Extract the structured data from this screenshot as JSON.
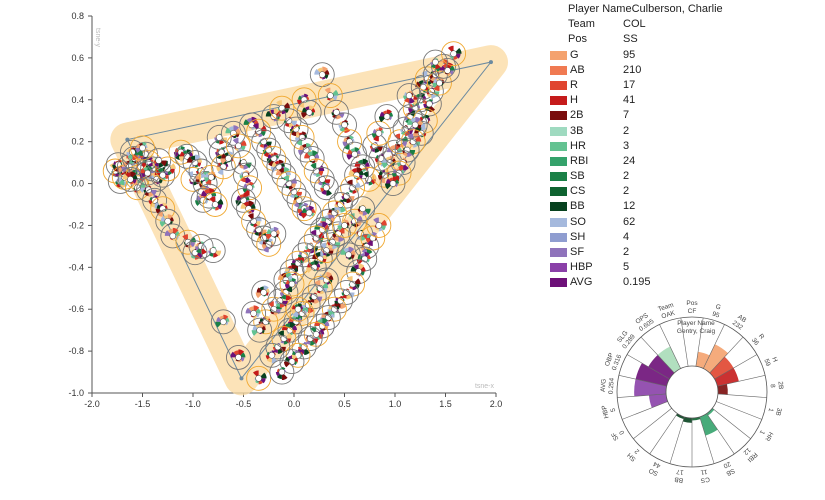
{
  "chart_data": {
    "type": "scatter",
    "title": "",
    "xlabel": "tsne-x",
    "ylabel": "tsne-y",
    "xlim": [
      -2.0,
      2.0
    ],
    "ylim": [
      -1.0,
      0.8
    ],
    "x_ticks": [
      "-2.0",
      "-1.5",
      "-1.0",
      "-0.5",
      "0.0",
      "0.5",
      "1.0",
      "1.5",
      "2.0"
    ],
    "y_ticks": [
      "0.8",
      "0.6",
      "0.4",
      "0.2",
      "0.0",
      "-0.2",
      "-0.4",
      "-0.6",
      "-0.8",
      "-1.0"
    ],
    "path": [
      [
        -1.65,
        0.21
      ],
      [
        1.95,
        0.58
      ],
      [
        -0.52,
        -0.93
      ],
      [
        -1.65,
        0.21
      ]
    ],
    "points": [
      [
        -1.77,
        0.06
      ],
      [
        -1.72,
        0.01
      ],
      [
        -1.74,
        0.09
      ],
      [
        -1.68,
        0.03
      ],
      [
        -1.63,
        0.08
      ],
      [
        -1.58,
        0.12
      ],
      [
        -1.55,
        0.03
      ],
      [
        -1.52,
        0.08
      ],
      [
        -1.47,
        0.14
      ],
      [
        -1.44,
        0.1
      ],
      [
        -1.4,
        0.07
      ],
      [
        -1.36,
        0.02
      ],
      [
        -1.55,
        -0.02
      ],
      [
        -1.44,
        -0.03
      ],
      [
        -1.6,
        0.15
      ],
      [
        -1.5,
        0.17
      ],
      [
        -1.45,
        0.05
      ],
      [
        -1.3,
        0.04
      ],
      [
        -1.25,
        0.07
      ],
      [
        -1.34,
        0.11
      ],
      [
        -1.38,
        -0.08
      ],
      [
        -1.3,
        -0.12
      ],
      [
        -1.25,
        -0.18
      ],
      [
        -1.2,
        -0.25
      ],
      [
        -1.05,
        -0.28
      ],
      [
        -0.98,
        -0.33
      ],
      [
        -0.92,
        -0.3
      ],
      [
        -1.12,
        0.15
      ],
      [
        -1.06,
        0.13
      ],
      [
        -0.98,
        0.1
      ],
      [
        -1.0,
        0.02
      ],
      [
        -0.92,
        0.06
      ],
      [
        -0.88,
        0.0
      ],
      [
        -0.82,
        0.03
      ],
      [
        -0.9,
        -0.08
      ],
      [
        -0.84,
        -0.06
      ],
      [
        -0.78,
        -0.1
      ],
      [
        -0.74,
        0.22
      ],
      [
        -0.72,
        0.15
      ],
      [
        -0.7,
        0.08
      ],
      [
        -0.65,
        0.12
      ],
      [
        -0.6,
        0.24
      ],
      [
        -0.55,
        0.18
      ],
      [
        -0.5,
        0.1
      ],
      [
        -0.48,
        0.04
      ],
      [
        -0.44,
        -0.02
      ],
      [
        -0.5,
        -0.08
      ],
      [
        -0.45,
        -0.12
      ],
      [
        -0.4,
        -0.18
      ],
      [
        -0.35,
        -0.22
      ],
      [
        -0.3,
        -0.26
      ],
      [
        -0.25,
        -0.29
      ],
      [
        -0.2,
        -0.24
      ],
      [
        -0.42,
        0.28
      ],
      [
        -0.35,
        0.25
      ],
      [
        -0.3,
        0.2
      ],
      [
        -0.25,
        0.16
      ],
      [
        -0.2,
        0.12
      ],
      [
        -0.15,
        0.08
      ],
      [
        -0.1,
        0.04
      ],
      [
        -0.05,
        0.0
      ],
      [
        0.0,
        -0.04
      ],
      [
        0.05,
        -0.08
      ],
      [
        0.1,
        -0.12
      ],
      [
        0.15,
        -0.14
      ],
      [
        -0.2,
        0.32
      ],
      [
        -0.12,
        0.36
      ],
      [
        -0.05,
        0.3
      ],
      [
        0.02,
        0.26
      ],
      [
        0.08,
        0.22
      ],
      [
        0.12,
        0.16
      ],
      [
        0.18,
        0.12
      ],
      [
        0.22,
        0.06
      ],
      [
        0.28,
        0.02
      ],
      [
        0.32,
        -0.02
      ],
      [
        0.1,
        0.4
      ],
      [
        0.15,
        0.34
      ],
      [
        0.28,
        0.52
      ],
      [
        0.36,
        0.42
      ],
      [
        0.42,
        0.34
      ],
      [
        0.5,
        0.28
      ],
      [
        0.55,
        0.2
      ],
      [
        0.6,
        0.14
      ],
      [
        0.68,
        0.08
      ],
      [
        0.74,
        0.02
      ],
      [
        0.8,
        0.18
      ],
      [
        0.86,
        0.12
      ],
      [
        0.9,
        0.04
      ],
      [
        0.95,
        0.1
      ],
      [
        1.0,
        0.15
      ],
      [
        1.05,
        0.2
      ],
      [
        1.1,
        0.26
      ],
      [
        1.15,
        0.32
      ],
      [
        1.2,
        0.36
      ],
      [
        1.25,
        0.4
      ],
      [
        1.28,
        0.46
      ],
      [
        1.32,
        0.5
      ],
      [
        1.36,
        0.44
      ],
      [
        1.4,
        0.52
      ],
      [
        1.44,
        0.48
      ],
      [
        1.48,
        0.56
      ],
      [
        1.52,
        0.54
      ],
      [
        1.58,
        0.62
      ],
      [
        1.4,
        0.58
      ],
      [
        1.34,
        0.38
      ],
      [
        1.3,
        0.3
      ],
      [
        1.26,
        0.24
      ],
      [
        1.2,
        0.28
      ],
      [
        1.18,
        0.2
      ],
      [
        1.12,
        0.16
      ],
      [
        1.08,
        0.1
      ],
      [
        1.04,
        0.05
      ],
      [
        0.98,
        0.0
      ],
      [
        0.62,
        0.04
      ],
      [
        0.58,
        -0.02
      ],
      [
        0.52,
        -0.06
      ],
      [
        0.46,
        -0.1
      ],
      [
        0.4,
        -0.14
      ],
      [
        0.34,
        -0.18
      ],
      [
        0.28,
        -0.22
      ],
      [
        0.22,
        -0.26
      ],
      [
        0.16,
        -0.3
      ],
      [
        0.1,
        -0.34
      ],
      [
        0.04,
        -0.38
      ],
      [
        -0.02,
        -0.42
      ],
      [
        -0.08,
        -0.46
      ],
      [
        0.6,
        -0.18
      ],
      [
        0.66,
        -0.24
      ],
      [
        0.72,
        -0.3
      ],
      [
        0.78,
        -0.26
      ],
      [
        0.7,
        -0.36
      ],
      [
        0.64,
        -0.42
      ],
      [
        0.58,
        -0.48
      ],
      [
        0.52,
        -0.52
      ],
      [
        0.46,
        -0.56
      ],
      [
        0.4,
        -0.6
      ],
      [
        0.34,
        -0.64
      ],
      [
        0.28,
        -0.68
      ],
      [
        0.22,
        -0.72
      ],
      [
        0.16,
        -0.74
      ],
      [
        0.1,
        -0.78
      ],
      [
        0.04,
        -0.82
      ],
      [
        -0.02,
        -0.85
      ],
      [
        0.32,
        -0.46
      ],
      [
        0.26,
        -0.5
      ],
      [
        0.2,
        -0.54
      ],
      [
        0.14,
        -0.58
      ],
      [
        0.08,
        -0.62
      ],
      [
        0.02,
        -0.66
      ],
      [
        -0.04,
        -0.7
      ],
      [
        -0.1,
        -0.74
      ],
      [
        -0.16,
        -0.78
      ],
      [
        -0.22,
        -0.82
      ],
      [
        -0.28,
        -0.66
      ],
      [
        -0.34,
        -0.7
      ],
      [
        -0.4,
        -0.62
      ],
      [
        -0.2,
        -0.6
      ],
      [
        -0.14,
        -0.56
      ],
      [
        -0.08,
        -0.52
      ],
      [
        -0.02,
        -0.48
      ],
      [
        0.2,
        -0.4
      ],
      [
        0.26,
        -0.36
      ],
      [
        0.32,
        -0.32
      ],
      [
        0.38,
        -0.28
      ],
      [
        0.44,
        -0.24
      ],
      [
        0.5,
        -0.2
      ],
      [
        -0.7,
        -0.66
      ],
      [
        -0.55,
        -0.83
      ],
      [
        -0.35,
        -0.93
      ],
      [
        -0.8,
        -0.32
      ],
      [
        -0.12,
        -0.9
      ],
      [
        0.04,
        -0.6
      ],
      [
        -0.3,
        -0.52
      ],
      [
        0.54,
        -0.34
      ],
      [
        0.84,
        -0.2
      ],
      [
        0.68,
        -0.12
      ],
      [
        1.14,
        0.42
      ],
      [
        0.84,
        0.24
      ],
      [
        0.92,
        0.32
      ],
      [
        -1.62,
        0.02
      ]
    ]
  },
  "stats": {
    "rows": [
      {
        "label": "G",
        "value": "95",
        "color": "#f4a26e"
      },
      {
        "label": "AB",
        "value": "210",
        "color": "#f07a52"
      },
      {
        "label": "R",
        "value": "17",
        "color": "#e0452f"
      },
      {
        "label": "H",
        "value": "41",
        "color": "#c51b1b"
      },
      {
        "label": "2B",
        "value": "7",
        "color": "#7a0c0c"
      },
      {
        "label": "3B",
        "value": "2",
        "color": "#9fdac0"
      },
      {
        "label": "HR",
        "value": "3",
        "color": "#63c291"
      },
      {
        "label": "RBI",
        "value": "24",
        "color": "#34a26b"
      },
      {
        "label": "SB",
        "value": "2",
        "color": "#1a8046"
      },
      {
        "label": "CS",
        "value": "2",
        "color": "#0e6330"
      },
      {
        "label": "BB",
        "value": "12",
        "color": "#07421f"
      },
      {
        "label": "SO",
        "value": "62",
        "color": "#a5b9dd"
      },
      {
        "label": "SH",
        "value": "4",
        "color": "#8f9dd0"
      },
      {
        "label": "SF",
        "value": "2",
        "color": "#8f73bb"
      },
      {
        "label": "HBP",
        "value": "5",
        "color": "#8a40a8"
      },
      {
        "label": "AVG",
        "value": "0.195",
        "color": "#6d1078"
      }
    ],
    "player_label": "Player Name",
    "player_value": "Culberson, Charlie",
    "team_label": "Team",
    "team_value": "COL",
    "pos_label": "Pos",
    "pos_value": "SS"
  },
  "radial": {
    "center_top_text": "Player Name",
    "center_sub_text": "Gentry, Craig",
    "segments": [
      {
        "label": "G",
        "value": "95",
        "fraction": 0.3,
        "color": "#f4a26e"
      },
      {
        "label": "AB",
        "value": "232",
        "fraction": 0.55,
        "color": "#f4a26e"
      },
      {
        "label": "R",
        "value": "36",
        "fraction": 0.45,
        "color": "#e0452f"
      },
      {
        "label": "H",
        "value": "59",
        "fraction": 0.45,
        "color": "#c51b1b"
      },
      {
        "label": "2B",
        "value": "8",
        "fraction": 0.2,
        "color": "#7a0c0c"
      },
      {
        "label": "3B",
        "value": "1",
        "fraction": 0.0,
        "color": "#9fdac0"
      },
      {
        "label": "HR",
        "value": "1",
        "fraction": 0.0,
        "color": "#63c291"
      },
      {
        "label": "RBI",
        "value": "12",
        "fraction": 0.05,
        "color": "#34a26b"
      },
      {
        "label": "SB",
        "value": "20",
        "fraction": 0.4,
        "color": "#34a26b"
      },
      {
        "label": "CS",
        "value": "11",
        "fraction": 0.05,
        "color": "#0e6330"
      },
      {
        "label": "BB",
        "value": "17",
        "fraction": 0.1,
        "color": "#07421f"
      },
      {
        "label": "SO",
        "value": "44",
        "fraction": 0.05,
        "color": "#07421f"
      },
      {
        "label": "SH",
        "value": "2",
        "fraction": 0.0,
        "color": "#8f9dd0"
      },
      {
        "label": "SF",
        "value": "0",
        "fraction": 0.0,
        "color": "#8f73bb"
      },
      {
        "label": "HBP",
        "value": "5",
        "fraction": 0.35,
        "color": "#8a40a8"
      },
      {
        "label": "AVG",
        "value": "0.254",
        "fraction": 0.65,
        "color": "#8a40a8"
      },
      {
        "label": "OBP",
        "value": "0.316",
        "fraction": 0.65,
        "color": "#6d1078"
      },
      {
        "label": "SLG",
        "value": "0.289",
        "fraction": 0.5,
        "color": "#6d1078"
      },
      {
        "label": "OPS",
        "value": "0.605",
        "fraction": 0.5,
        "color": "#a9dbb8"
      },
      {
        "label": "Team",
        "value": "OAK",
        "fraction": 0.0,
        "color": "#ffffff"
      },
      {
        "label": "Pos",
        "value": "CF",
        "fraction": 0.0,
        "color": "#ffffff"
      }
    ]
  }
}
